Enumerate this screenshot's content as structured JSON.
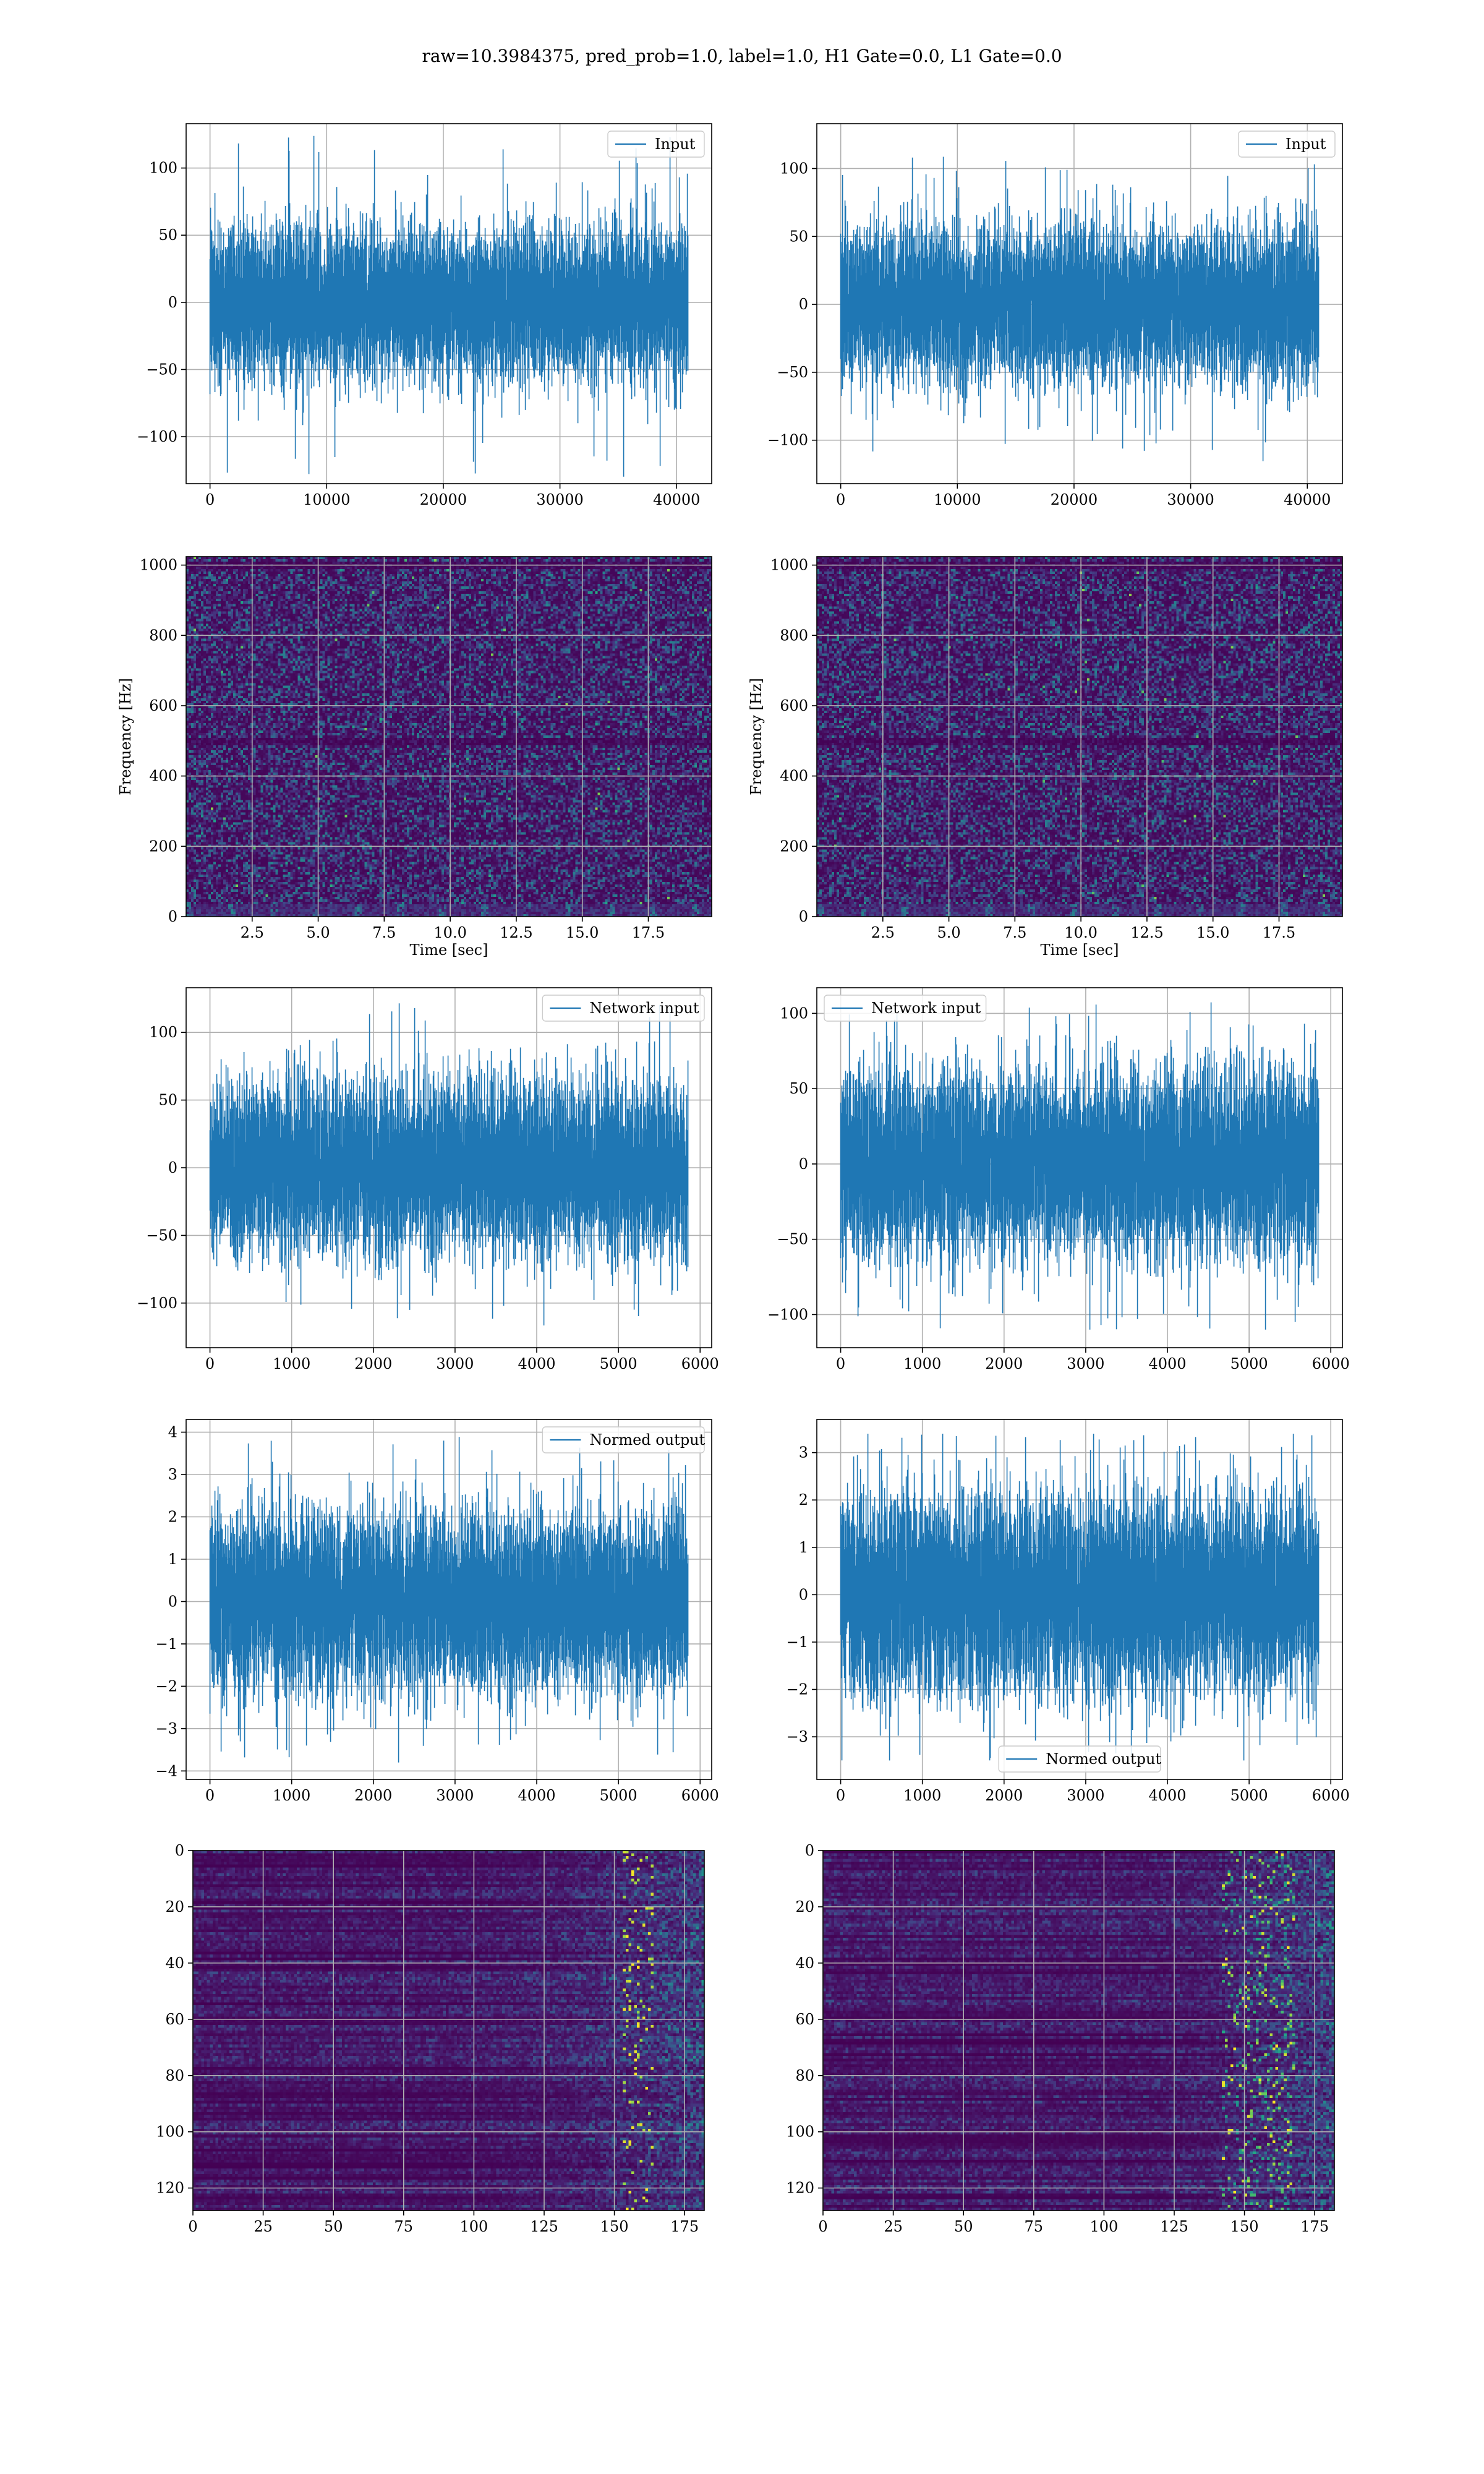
{
  "figure": {
    "suptitle": "raw=10.3984375, pred_prob=1.0, label=1.0, H1 Gate=0.0, L1 Gate=0.0",
    "line_color": "#1f77b4",
    "grid_color": "#b0b0b0",
    "colormap": "viridis"
  },
  "chart_data": [
    {
      "id": "p1",
      "type": "line",
      "title": "",
      "legend": {
        "entries": [
          "Input"
        ],
        "placement": "top-right"
      },
      "xlabel": "",
      "ylabel": "",
      "xlim": [
        -2048,
        43008
      ],
      "ylim": [
        -135,
        133
      ],
      "xticks": [
        0,
        10000,
        20000,
        30000,
        40000
      ],
      "yticks": [
        -100,
        -50,
        0,
        50,
        100
      ],
      "ytick_labels": [
        "−100",
        "−50",
        "0",
        "50",
        "100"
      ],
      "series": [
        {
          "name": "Input",
          "n_points": 40960,
          "x_range": [
            0,
            40960
          ],
          "std": 27,
          "min": -130,
          "max": 124
        }
      ]
    },
    {
      "id": "p2",
      "type": "line",
      "title": "",
      "legend": {
        "entries": [
          "Input"
        ],
        "placement": "top-right"
      },
      "xlabel": "",
      "ylabel": "",
      "xlim": [
        -2048,
        43008
      ],
      "ylim": [
        -132,
        133
      ],
      "xticks": [
        0,
        10000,
        20000,
        30000,
        40000
      ],
      "yticks": [
        -100,
        -50,
        0,
        50,
        100
      ],
      "ytick_labels": [
        "−100",
        "−50",
        "0",
        "50",
        "100"
      ],
      "series": [
        {
          "name": "Input",
          "n_points": 40960,
          "x_range": [
            0,
            40960
          ],
          "std": 27,
          "min": -118,
          "max": 110
        }
      ]
    },
    {
      "id": "p3",
      "type": "heatmap",
      "title": "",
      "xlabel": "Time [sec]",
      "ylabel": "Frequency [Hz]",
      "xlim": [
        0,
        19.9
      ],
      "ylim": [
        0,
        1024
      ],
      "xticks": [
        2.5,
        5.0,
        7.5,
        10.0,
        12.5,
        15.0,
        17.5
      ],
      "xtick_labels": [
        "2.5",
        "5.0",
        "7.5",
        "10.0",
        "12.5",
        "15.0",
        "17.5"
      ],
      "yticks": [
        0,
        200,
        400,
        600,
        800,
        1000
      ],
      "content": "spectrogram noise, low power dominant; dark horizontal bands near 60 Hz, 500 Hz and 1000 Hz"
    },
    {
      "id": "p4",
      "type": "heatmap",
      "title": "",
      "xlabel": "Time [sec]",
      "ylabel": "Frequency [Hz]",
      "xlim": [
        0,
        19.9
      ],
      "ylim": [
        0,
        1024
      ],
      "xticks": [
        2.5,
        5.0,
        7.5,
        10.0,
        12.5,
        15.0,
        17.5
      ],
      "xtick_labels": [
        "2.5",
        "5.0",
        "7.5",
        "10.0",
        "12.5",
        "15.0",
        "17.5"
      ],
      "yticks": [
        0,
        200,
        400,
        600,
        800,
        1000
      ],
      "content": "spectrogram noise, low power dominant; dark horizontal bands near 60 Hz, 500 Hz and 1000 Hz"
    },
    {
      "id": "p5",
      "type": "line",
      "title": "",
      "legend": {
        "entries": [
          "Network input"
        ],
        "placement": "top-right"
      },
      "xlabel": "",
      "ylabel": "",
      "xlim": [
        -292,
        6142
      ],
      "ylim": [
        -133,
        133
      ],
      "xticks": [
        0,
        1000,
        2000,
        3000,
        4000,
        5000,
        6000
      ],
      "yticks": [
        -100,
        -50,
        0,
        50,
        100
      ],
      "ytick_labels": [
        "−100",
        "−50",
        "0",
        "50",
        "100"
      ],
      "series": [
        {
          "name": "Network input",
          "n_points": 5850,
          "x_range": [
            0,
            5850
          ],
          "std": 30,
          "min": -118,
          "max": 123
        }
      ]
    },
    {
      "id": "p6",
      "type": "line",
      "title": "",
      "legend": {
        "entries": [
          "Network input"
        ],
        "placement": "top-left"
      },
      "xlabel": "",
      "ylabel": "",
      "xlim": [
        -292,
        6142
      ],
      "ylim": [
        -122,
        117
      ],
      "xticks": [
        0,
        1000,
        2000,
        3000,
        4000,
        5000,
        6000
      ],
      "yticks": [
        -100,
        -50,
        0,
        50,
        100
      ],
      "ytick_labels": [
        "−100",
        "−50",
        "0",
        "50",
        "100"
      ],
      "series": [
        {
          "name": "Network input",
          "n_points": 5850,
          "x_range": [
            0,
            5850
          ],
          "std": 29,
          "min": -110,
          "max": 108
        }
      ]
    },
    {
      "id": "p7",
      "type": "line",
      "title": "",
      "legend": {
        "entries": [
          "Normed output"
        ],
        "placement": "top-right"
      },
      "xlabel": "",
      "ylabel": "",
      "xlim": [
        -292,
        6142
      ],
      "ylim": [
        -4.2,
        4.3
      ],
      "xticks": [
        0,
        1000,
        2000,
        3000,
        4000,
        5000,
        6000
      ],
      "yticks": [
        -4,
        -3,
        -2,
        -1,
        0,
        1,
        2,
        3,
        4
      ],
      "ytick_labels": [
        "−4",
        "−3",
        "−2",
        "−1",
        "0",
        "1",
        "2",
        "3",
        "4"
      ],
      "series": [
        {
          "name": "Normed output",
          "n_points": 5850,
          "x_range": [
            0,
            5850
          ],
          "std": 1.0,
          "min": -3.8,
          "max": 3.9
        }
      ]
    },
    {
      "id": "p8",
      "type": "line",
      "title": "",
      "legend": {
        "entries": [
          "Normed output"
        ],
        "placement": "bottom-center"
      },
      "xlabel": "",
      "ylabel": "",
      "xlim": [
        -292,
        6142
      ],
      "ylim": [
        -3.9,
        3.7
      ],
      "xticks": [
        0,
        1000,
        2000,
        3000,
        4000,
        5000,
        6000
      ],
      "yticks": [
        -3,
        -2,
        -1,
        0,
        1,
        2,
        3
      ],
      "ytick_labels": [
        "−3",
        "−2",
        "−1",
        "0",
        "1",
        "2",
        "3"
      ],
      "series": [
        {
          "name": "Normed output",
          "n_points": 5850,
          "x_range": [
            0,
            5850
          ],
          "std": 1.0,
          "min": -3.5,
          "max": 3.4
        }
      ]
    },
    {
      "id": "p9",
      "type": "heatmap",
      "title": "",
      "xlabel": "",
      "ylabel": "",
      "xlim": [
        0,
        182
      ],
      "ylim": [
        128,
        0
      ],
      "xticks": [
        0,
        25,
        50,
        75,
        100,
        125,
        150,
        175
      ],
      "yticks": [
        0,
        20,
        40,
        60,
        80,
        100,
        120
      ],
      "content": "128 channels x 182 steps; row-wise streaky activations, brighter toward x = 150-180 with sparse yellow spots near x = 158"
    },
    {
      "id": "p10",
      "type": "heatmap",
      "title": "",
      "xlabel": "",
      "ylabel": "",
      "xlim": [
        0,
        182
      ],
      "ylim": [
        128,
        0
      ],
      "xticks": [
        0,
        25,
        50,
        75,
        100,
        125,
        150,
        175
      ],
      "yticks": [
        0,
        20,
        40,
        60,
        80,
        100,
        120
      ],
      "content": "128 channels x 182 steps; row-wise streaky activations, bright green/yellow band concentrated around x = 145-165"
    }
  ]
}
